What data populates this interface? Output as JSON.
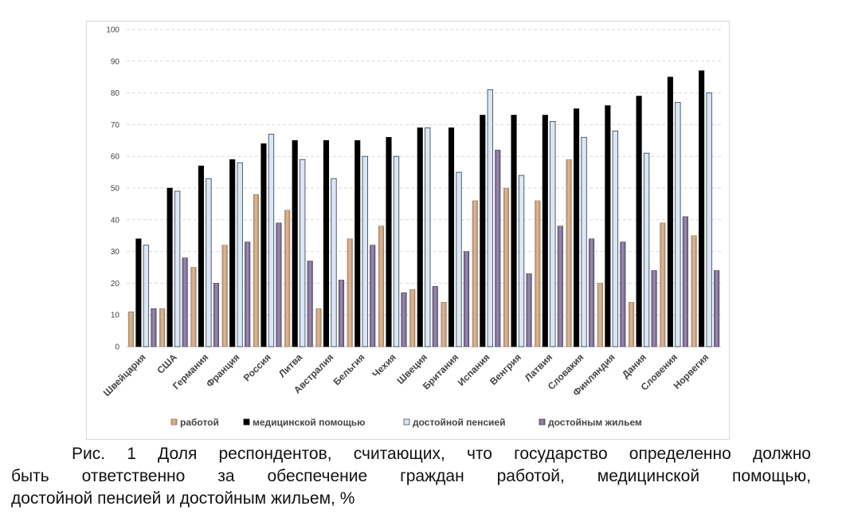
{
  "caption": {
    "line1": "Рис. 1 Доля респондентов, считающих, что государство определенно должно",
    "line2": "быть ответственно за обеспечение граждан работой, медицинской помощью,",
    "line3": "достойной пенсией и достойным жильем, %"
  },
  "chart_data": {
    "type": "bar",
    "title": "",
    "xlabel": "",
    "ylabel": "",
    "ylim": [
      0,
      100
    ],
    "yticks": [
      0,
      10,
      20,
      30,
      40,
      50,
      60,
      70,
      80,
      90,
      100
    ],
    "grid": true,
    "legend_position": "bottom",
    "categories": [
      "Швейцария",
      "США",
      "Германия",
      "Франция",
      "Россия",
      "Литва",
      "Австралия",
      "Бельгия",
      "Чехия",
      "Швеция",
      "Британия",
      "Испания",
      "Венгрия",
      "Латвия",
      "Словакия",
      "Финляндия",
      "Дания",
      "Словения",
      "Норвегия"
    ],
    "series": [
      {
        "name": "работой",
        "color": "#c9a080",
        "values": [
          11,
          12,
          25,
          32,
          48,
          43,
          12,
          34,
          38,
          18,
          14,
          46,
          50,
          46,
          59,
          20,
          14,
          39,
          35
        ]
      },
      {
        "name": "медицинской помощью",
        "color": "#000000",
        "values": [
          34,
          50,
          57,
          59,
          64,
          65,
          65,
          65,
          66,
          69,
          69,
          73,
          73,
          73,
          75,
          76,
          79,
          85,
          87
        ]
      },
      {
        "name": "достойной пенсией",
        "color": "#dce6f2",
        "values": [
          32,
          49,
          53,
          58,
          67,
          59,
          53,
          60,
          60,
          69,
          55,
          81,
          54,
          71,
          66,
          68,
          61,
          77,
          80
        ]
      },
      {
        "name": "достойным жильем",
        "color": "#7f6f94",
        "values": [
          12,
          28,
          20,
          33,
          39,
          27,
          21,
          32,
          17,
          19,
          30,
          62,
          23,
          38,
          34,
          33,
          24,
          41,
          24
        ]
      }
    ]
  }
}
